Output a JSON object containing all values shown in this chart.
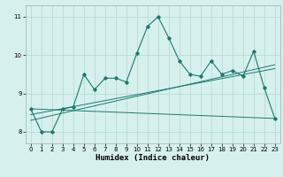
{
  "x": [
    0,
    1,
    2,
    3,
    4,
    5,
    6,
    7,
    8,
    9,
    10,
    11,
    12,
    13,
    14,
    15,
    16,
    17,
    18,
    19,
    20,
    21,
    22,
    23
  ],
  "main_line": [
    8.6,
    8.0,
    8.0,
    8.6,
    8.65,
    9.5,
    9.1,
    9.4,
    9.4,
    9.3,
    10.05,
    10.75,
    11.0,
    10.45,
    9.85,
    9.5,
    9.45,
    9.85,
    9.5,
    9.6,
    9.45,
    10.1,
    9.15,
    8.35
  ],
  "flat_line_x": [
    0,
    23
  ],
  "flat_line_y": [
    8.6,
    8.35
  ],
  "trend_line1_x": [
    0,
    23
  ],
  "trend_line1_y": [
    8.45,
    9.65
  ],
  "trend_line2_x": [
    0,
    23
  ],
  "trend_line2_y": [
    8.3,
    9.75
  ],
  "line_color": "#1a7a6e",
  "bg_color": "#d6f0ee",
  "grid_color": "#b0d8d4",
  "ylim": [
    7.7,
    11.3
  ],
  "xlim": [
    -0.5,
    23.5
  ],
  "xlabel": "Humidex (Indice chaleur)",
  "yticks": [
    8,
    9,
    10,
    11
  ],
  "xticks": [
    0,
    1,
    2,
    3,
    4,
    5,
    6,
    7,
    8,
    9,
    10,
    11,
    12,
    13,
    14,
    15,
    16,
    17,
    18,
    19,
    20,
    21,
    22,
    23
  ]
}
